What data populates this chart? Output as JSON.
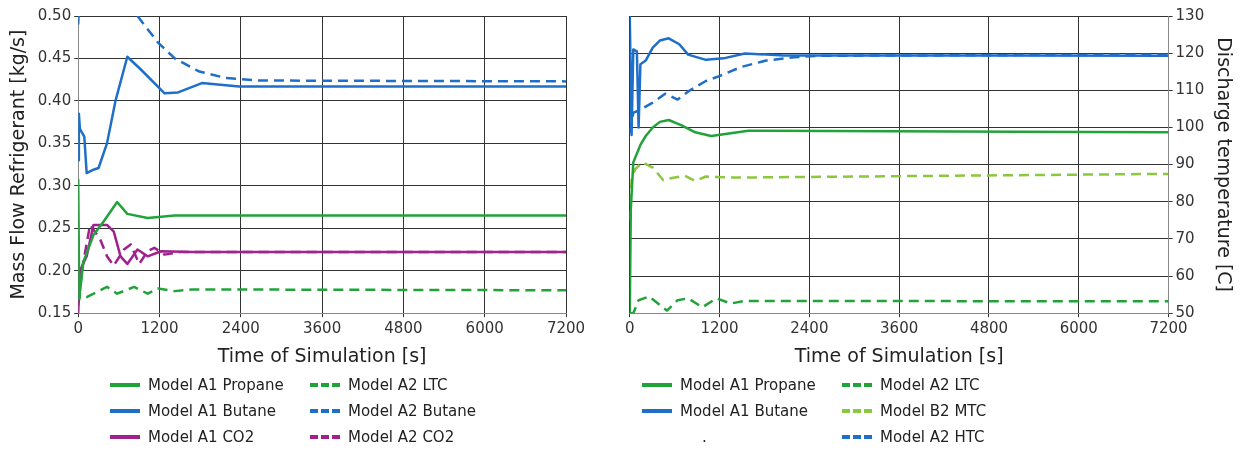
{
  "chart_data": [
    {
      "type": "line",
      "xlabel": "Time of Simulation [s]",
      "ylabel": "Mass Flow Refrigerant [kg/s]",
      "xlim": [
        0,
        7200
      ],
      "xticks": [
        0,
        1200,
        2400,
        3600,
        4800,
        6000,
        7200
      ],
      "ylim": [
        0.15,
        0.5
      ],
      "yticks": [
        0.15,
        {
          "value": 0.2,
          "label": "0.20"
        },
        0.25,
        {
          "value": 0.3,
          "label": "0.30"
        },
        0.35,
        {
          "value": 0.4,
          "label": "0.40"
        },
        0.45,
        {
          "value": 0.5,
          "label": "0.50"
        }
      ],
      "grid": true,
      "legend": "bottom",
      "marker": "none",
      "series": [
        {
          "name": "Model A1 Propane",
          "color": "#21a33a",
          "line_style": "solid",
          "x": [
            0,
            15,
            75,
            225,
            375,
            575,
            725,
            1025,
            1425,
            7200
          ],
          "values": [
            0.308,
            0.167,
            0.21,
            0.242,
            0.258,
            0.281,
            0.267,
            0.262,
            0.265,
            0.265
          ]
        },
        {
          "name": "Model A1 Butane",
          "color": "#1f6fc8",
          "line_style": "solid",
          "x": [
            0,
            10,
            25,
            90,
            125,
            225,
            300,
            425,
            550,
            725,
            925,
            1275,
            1475,
            1825,
            2375,
            7200
          ],
          "values": [
            0.33,
            0.385,
            0.367,
            0.358,
            0.315,
            0.319,
            0.321,
            0.35,
            0.4,
            0.452,
            0.437,
            0.409,
            0.41,
            0.421,
            0.417,
            0.417
          ]
        },
        {
          "name": "Model A1 CO2",
          "color": "#a0208e",
          "line_style": "solid",
          "x": [
            0,
            25,
            125,
            225,
            425,
            525,
            625,
            725,
            875,
            1025,
            1225,
            1675,
            7200
          ],
          "values": [
            0.15,
            0.2,
            0.217,
            0.254,
            0.254,
            0.246,
            0.217,
            0.208,
            0.225,
            0.217,
            0.223,
            0.222,
            0.222
          ]
        },
        {
          "name": "Model A2 LTC",
          "color": "#21a33a",
          "line_style": "dashed",
          "x": [
            0,
            25,
            125,
            425,
            575,
            825,
            1025,
            1175,
            1425,
            1675,
            7200
          ],
          "values": [
            0.16,
            0.171,
            0.169,
            0.181,
            0.173,
            0.181,
            0.173,
            0.179,
            0.176,
            0.178,
            0.177
          ]
        },
        {
          "name": "Model A2 Butane",
          "color": "#1f6fc8",
          "line_style": "dashed",
          "x": [
            0,
            5,
            400,
            875,
            1175,
            1425,
            1775,
            2175,
            2675,
            7200
          ],
          "values": [
            0.49,
            0.5,
            null,
            0.5,
            0.469,
            0.45,
            0.435,
            0.427,
            0.424,
            0.423
          ]
        },
        {
          "name": "Model A2 CO2",
          "color": "#a0208e",
          "line_style": "dashed",
          "x": [
            0,
            75,
            175,
            325,
            425,
            525,
            675,
            775,
            900,
            1025,
            1125,
            1275,
            1500,
            7200
          ],
          "values": [
            0.163,
            0.21,
            0.254,
            0.237,
            0.217,
            0.206,
            0.225,
            0.231,
            0.208,
            0.223,
            0.227,
            0.219,
            0.222,
            0.222
          ]
        }
      ]
    },
    {
      "type": "line",
      "xlabel": "Time of Simulation [s]",
      "y2label": "Discharge temperature [C]",
      "xlim": [
        0,
        7200
      ],
      "xticks": [
        0,
        1200,
        2400,
        3600,
        4800,
        6000,
        7200
      ],
      "y2lim": [
        50,
        130
      ],
      "y2ticks": [
        50,
        60,
        70,
        80,
        90,
        100,
        110,
        120,
        130
      ],
      "grid": true,
      "legend": "bottom",
      "marker": "none",
      "annotations": [
        "."
      ],
      "series": [
        {
          "name": "Model A1 Propane",
          "color": "#21a33a",
          "line_style": "solid",
          "axis": "y2",
          "x": [
            0,
            14,
            47,
            142,
            213,
            307,
            402,
            520,
            686,
            875,
            1088,
            1585,
            7200
          ],
          "values": [
            50,
            78,
            90.6,
            95.3,
            97.7,
            100,
            101.5,
            102,
            100.6,
            98.7,
            97.7,
            99.1,
            98.7
          ]
        },
        {
          "name": "Model A1 Butane",
          "color": "#1f6fc8",
          "line_style": "solid",
          "axis": "y2",
          "x": [
            0,
            24,
            47,
            95,
            118,
            142,
            213,
            307,
            402,
            520,
            662,
            780,
            1017,
            1253,
            1537,
            2058,
            7200
          ],
          "values": [
            130,
            98,
            121,
            120.5,
            100,
            117,
            118,
            121.5,
            123.4,
            124,
            122.4,
            119.6,
            118.2,
            118.6,
            119.9,
            119.4,
            119.3
          ]
        },
        {
          "name": "Model A2 LTC",
          "color": "#21a33a",
          "line_style": "dashed",
          "axis": "y2",
          "x": [
            0,
            47,
            118,
            260,
            497,
            639,
            780,
            970,
            1159,
            1348,
            1537,
            7200
          ],
          "values": [
            50,
            50,
            53.5,
            54.5,
            50.7,
            53.5,
            54,
            51.6,
            54,
            52.6,
            53.3,
            53.2
          ]
        },
        {
          "name": "Model B2 MTC",
          "color": "#8dc63f",
          "line_style": "dashed",
          "axis": "y2",
          "x": [
            0,
            24,
            71,
            166,
            307,
            449,
            544,
            733,
            875,
            1017,
            1348,
            7200
          ],
          "values": [
            75,
            85.8,
            88.7,
            90.6,
            89.2,
            85.8,
            86.3,
            87,
            85.6,
            86.8,
            86.5,
            87.5
          ]
        },
        {
          "name": "Model A2 HTC",
          "color": "#1f6fc8",
          "line_style": "dashed",
          "axis": "y2",
          "x": [
            0,
            47,
            142,
            307,
            473,
            639,
            804,
            1017,
            1206,
            1490,
            1821,
            2200,
            2530,
            7200
          ],
          "values": [
            98.7,
            103.9,
            104.8,
            106.7,
            109.1,
            107.5,
            110,
            112.5,
            113.9,
            116.3,
            118,
            118.9,
            119.3,
            119.6
          ]
        }
      ]
    }
  ]
}
